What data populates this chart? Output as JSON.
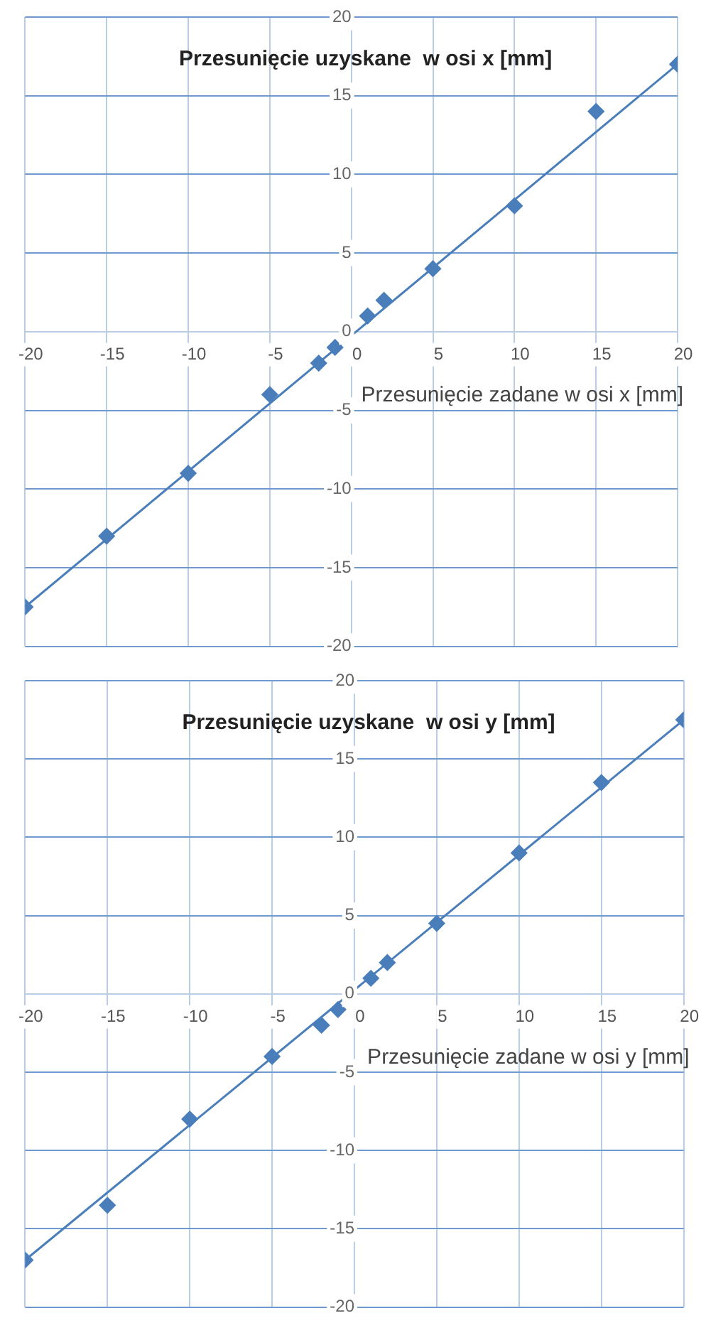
{
  "chart_data": [
    {
      "type": "scatter",
      "xlabel": "Przesunięcie zadane w osi x [mm]",
      "ylabel": "Przesunięcie uzyskane  w osi x [mm]",
      "xlim": [
        -20,
        20
      ],
      "ylim": [
        -20,
        20
      ],
      "xticks": [
        -20,
        -15,
        -10,
        -5,
        0,
        5,
        10,
        15,
        20
      ],
      "yticks": [
        -20,
        -15,
        -10,
        -5,
        0,
        5,
        10,
        15,
        20
      ],
      "grid": true,
      "legend": false,
      "series": [
        {
          "type": "scatter",
          "color": "#4a7ebb",
          "marker": "diamond",
          "x": [
            -20,
            -15,
            -10,
            -5,
            -2,
            -1,
            1,
            2,
            5,
            10,
            15,
            20
          ],
          "values": [
            -17.5,
            -13,
            -9,
            -4,
            -2,
            -1,
            1,
            2,
            4,
            8,
            14,
            17
          ]
        },
        {
          "type": "line",
          "color": "#4a7ebb",
          "marker": "none",
          "line_style": "solid",
          "x": [
            -20,
            20
          ],
          "values": [
            -17.5,
            17
          ]
        }
      ]
    },
    {
      "type": "scatter",
      "xlabel": "Przesunięcie zadane w osi y [mm]",
      "ylabel": "Przesunięcie uzyskane  w osi y [mm]",
      "xlim": [
        -20,
        20
      ],
      "ylim": [
        -20,
        20
      ],
      "xticks": [
        -20,
        -15,
        -10,
        -5,
        0,
        5,
        10,
        15,
        20
      ],
      "yticks": [
        -20,
        -15,
        -10,
        -5,
        0,
        5,
        10,
        15,
        20
      ],
      "grid": true,
      "legend": false,
      "series": [
        {
          "type": "scatter",
          "color": "#4a7ebb",
          "marker": "diamond",
          "x": [
            -20,
            -15,
            -10,
            -5,
            -2,
            -1,
            1,
            2,
            5,
            10,
            15,
            20
          ],
          "values": [
            -17,
            -13.5,
            -8,
            -4,
            -2,
            -1,
            1,
            2,
            4.5,
            9,
            13.5,
            17.5
          ]
        },
        {
          "type": "line",
          "color": "#4a7ebb",
          "marker": "none",
          "line_style": "solid",
          "x": [
            -20,
            20
          ],
          "values": [
            -17,
            17.5
          ]
        }
      ]
    }
  ]
}
